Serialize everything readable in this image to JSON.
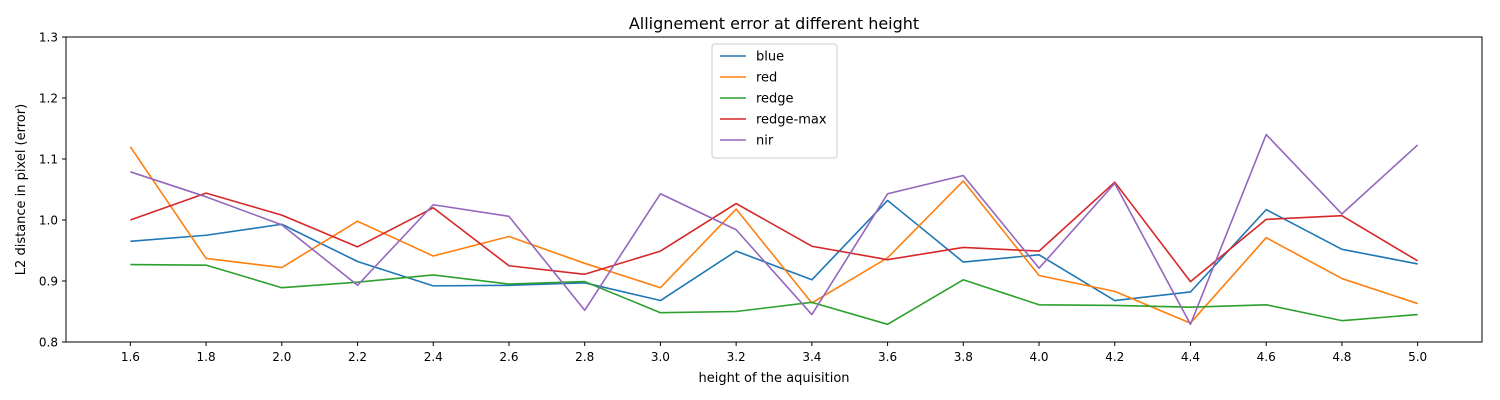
{
  "chart_data": {
    "type": "line",
    "title": "Allignement error at different height",
    "xlabel": "height of the aquisition",
    "ylabel": "L2 distance in pixel (error)",
    "x": [
      1.6,
      1.8,
      2.0,
      2.2,
      2.4,
      2.6,
      2.8,
      3.0,
      3.2,
      3.4,
      3.6,
      3.8,
      4.0,
      4.2,
      4.4,
      4.6,
      4.8,
      5.0
    ],
    "x_tick_labels": [
      "1.6",
      "1.8",
      "2.0",
      "2.2",
      "2.4",
      "2.6",
      "2.8",
      "3.0",
      "3.2",
      "3.4",
      "3.6",
      "3.8",
      "4.0",
      "4.2",
      "4.4",
      "4.6",
      "4.8",
      "5.0"
    ],
    "xlim": [
      1.43,
      5.17
    ],
    "ylim": [
      0.8,
      1.3
    ],
    "y_ticks": [
      0.8,
      0.9,
      1.0,
      1.1,
      1.2,
      1.3
    ],
    "y_tick_labels": [
      "0.8",
      "0.9",
      "1.0",
      "1.1",
      "1.2",
      "1.3"
    ],
    "grid": false,
    "legend_position": "top-center",
    "series": [
      {
        "name": "blue",
        "color": "#1f77b4",
        "values": [
          0.965,
          0.975,
          0.993,
          0.932,
          0.892,
          0.893,
          0.897,
          0.868,
          0.949,
          0.902,
          1.032,
          0.931,
          0.943,
          0.868,
          0.882,
          1.017,
          0.952,
          0.928
        ]
      },
      {
        "name": "red",
        "color": "#ff7f0e",
        "values": [
          1.12,
          0.937,
          0.922,
          0.998,
          0.941,
          0.973,
          0.929,
          0.889,
          1.018,
          0.864,
          0.938,
          1.064,
          0.909,
          0.883,
          0.831,
          0.971,
          0.904,
          0.863
        ]
      },
      {
        "name": "redge",
        "color": "#2ca02c",
        "values": [
          0.927,
          0.926,
          0.889,
          0.898,
          0.91,
          0.895,
          0.899,
          0.848,
          0.85,
          0.865,
          0.829,
          0.902,
          0.861,
          0.86,
          0.857,
          0.861,
          0.835,
          0.845
        ]
      },
      {
        "name": "redge-max",
        "color": "#d62728",
        "values": [
          1.0,
          1.044,
          1.008,
          0.956,
          1.02,
          0.925,
          0.911,
          0.949,
          1.027,
          0.957,
          0.935,
          0.955,
          0.949,
          1.062,
          0.899,
          1.001,
          1.007,
          0.933
        ]
      },
      {
        "name": "nir",
        "color": "#9467bd",
        "values": [
          1.079,
          1.038,
          0.992,
          0.893,
          1.025,
          1.006,
          0.852,
          1.043,
          0.984,
          0.845,
          1.043,
          1.073,
          0.921,
          1.06,
          0.829,
          1.14,
          1.01,
          1.123
        ]
      }
    ]
  }
}
